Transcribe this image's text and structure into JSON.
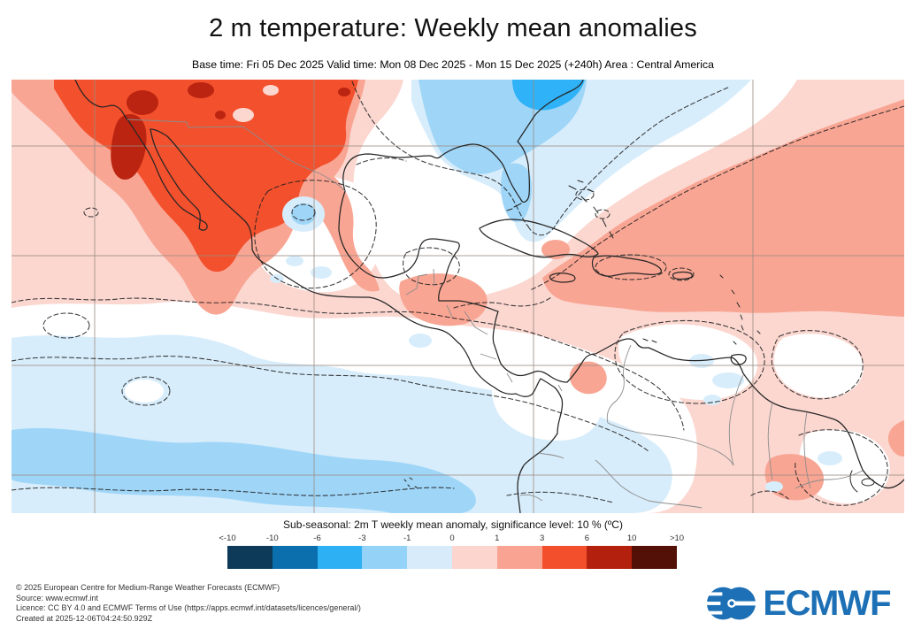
{
  "title": "2 m temperature: Weekly mean anomalies",
  "subtitle": "Base time: Fri 05 Dec 2025 Valid time: Mon 08 Dec 2025 - Mon 15 Dec 2025 (+240h) Area : Central America",
  "map": {
    "region": "Central America",
    "type": "filled anomaly contour map with significance hatching (dashed) and lat/lon gridlines",
    "legend_ranges": [
      "<-10",
      "-10 to -6",
      "-6 to -3",
      "-3 to -1",
      "-1 to 0",
      "0 to 1",
      "1 to 3",
      "3 to 6",
      "6 to 10",
      ">10"
    ]
  },
  "colorbar": {
    "caption": "Sub-seasonal: 2m T weekly mean anomaly, significance level: 10 % (ºC)",
    "tick_labels": [
      "<-10",
      "-10",
      "-6",
      "-3",
      "-1",
      "0",
      "1",
      "3",
      "6",
      "10",
      ">10"
    ],
    "segment_colors": [
      "#0e3a5a",
      "#0b6fad",
      "#2eb0f5",
      "#95d2f7",
      "#d7ebfa",
      "#fbd5ce",
      "#f9a492",
      "#f44f2c",
      "#b3200d",
      "#531006"
    ]
  },
  "colors": {
    "warm1": "#fbd7d0",
    "warm2": "#f9a593",
    "warm3": "#f3502d",
    "warm4": "#bb2410",
    "cool1": "#d8edfb",
    "cool2": "#9fd6f8",
    "cool3": "#2fb2f7",
    "grid": "#9b8b81",
    "coast": "#262626",
    "border": "#8c8c8c",
    "contour": "#1f1f1f",
    "logo": "#1d70b5"
  },
  "footer": {
    "line1": "© 2025 European Centre for Medium-Range Weather Forecasts (ECMWF)",
    "line2": "Source: www.ecmwf.int",
    "line3": "Licence: CC BY 4.0 and ECMWF Terms of Use (https://apps.ecmwf.int/datasets/licences/general/)",
    "line4": "Created at 2025-12-06T04:24:50.929Z"
  },
  "logo": {
    "text": "ECMWF"
  }
}
